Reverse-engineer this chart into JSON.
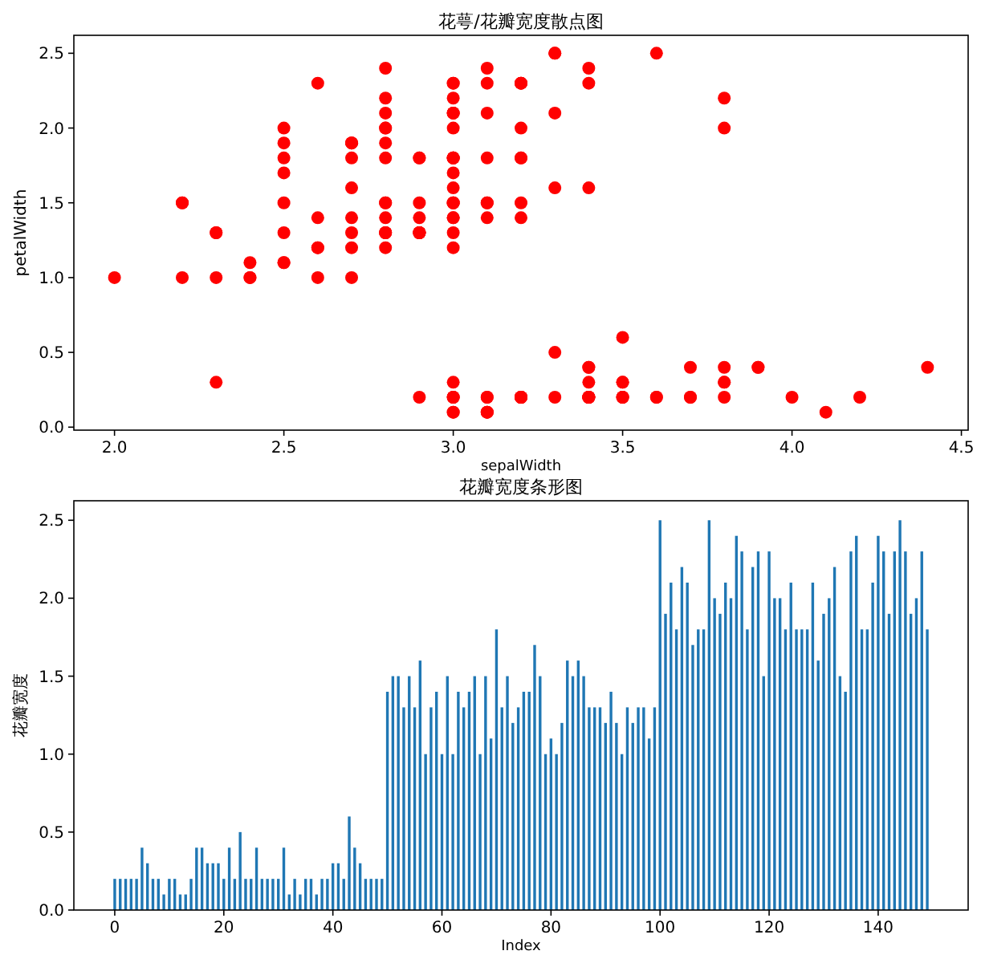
{
  "chart_data": [
    {
      "type": "scatter",
      "title": "花萼/花瓣宽度散点图",
      "xlabel": "sepalWidth",
      "ylabel": "petalWidth",
      "color": "#ff0000",
      "marker": "circle",
      "x": [
        3.5,
        3.0,
        3.2,
        3.1,
        3.6,
        3.9,
        3.4,
        3.4,
        2.9,
        3.1,
        3.7,
        3.4,
        3.0,
        3.0,
        4.0,
        4.4,
        3.9,
        3.5,
        3.8,
        3.8,
        3.4,
        3.7,
        3.6,
        3.3,
        3.4,
        3.0,
        3.4,
        3.5,
        3.4,
        3.2,
        3.1,
        3.4,
        4.1,
        4.2,
        3.1,
        3.2,
        3.5,
        3.1,
        3.0,
        3.4,
        3.5,
        2.3,
        3.2,
        3.5,
        3.8,
        3.0,
        3.8,
        3.2,
        3.7,
        3.3,
        3.2,
        3.2,
        3.1,
        2.3,
        2.8,
        2.8,
        3.3,
        2.4,
        2.9,
        2.7,
        2.0,
        3.0,
        2.2,
        2.9,
        2.9,
        3.1,
        3.0,
        2.7,
        2.2,
        2.5,
        3.2,
        2.8,
        2.5,
        2.8,
        2.9,
        3.0,
        2.8,
        3.0,
        2.9,
        2.6,
        2.4,
        2.4,
        2.7,
        2.7,
        3.0,
        3.4,
        3.1,
        2.3,
        3.0,
        2.5,
        2.6,
        3.0,
        2.6,
        2.3,
        2.7,
        3.0,
        2.9,
        2.9,
        2.5,
        2.8,
        3.3,
        2.7,
        3.0,
        2.9,
        3.0,
        3.0,
        2.5,
        2.9,
        2.5,
        3.6,
        3.2,
        2.7,
        3.0,
        2.5,
        2.8,
        3.2,
        3.0,
        3.8,
        2.6,
        2.2,
        3.2,
        2.8,
        2.8,
        2.7,
        3.3,
        3.2,
        2.8,
        3.0,
        2.8,
        3.0,
        2.8,
        3.8,
        2.8,
        2.8,
        2.6,
        3.0,
        3.4,
        3.1,
        3.0,
        3.1,
        3.1,
        3.1,
        2.7,
        3.2,
        3.3,
        3.0,
        2.5,
        3.0,
        3.4,
        3.0
      ],
      "values": [
        0.2,
        0.2,
        0.2,
        0.2,
        0.2,
        0.4,
        0.3,
        0.2,
        0.2,
        0.1,
        0.2,
        0.2,
        0.1,
        0.1,
        0.2,
        0.4,
        0.4,
        0.3,
        0.3,
        0.3,
        0.2,
        0.4,
        0.2,
        0.5,
        0.2,
        0.2,
        0.4,
        0.2,
        0.2,
        0.2,
        0.2,
        0.4,
        0.1,
        0.2,
        0.1,
        0.2,
        0.2,
        0.1,
        0.2,
        0.2,
        0.3,
        0.3,
        0.2,
        0.6,
        0.4,
        0.3,
        0.2,
        0.2,
        0.2,
        0.2,
        1.4,
        1.5,
        1.5,
        1.3,
        1.5,
        1.3,
        1.6,
        1.0,
        1.3,
        1.4,
        1.0,
        1.5,
        1.0,
        1.4,
        1.3,
        1.4,
        1.5,
        1.0,
        1.5,
        1.1,
        1.8,
        1.3,
        1.5,
        1.2,
        1.3,
        1.4,
        1.4,
        1.7,
        1.5,
        1.0,
        1.1,
        1.0,
        1.2,
        1.6,
        1.5,
        1.6,
        1.5,
        1.3,
        1.3,
        1.3,
        1.2,
        1.4,
        1.2,
        1.0,
        1.3,
        1.2,
        1.3,
        1.3,
        1.1,
        1.3,
        2.5,
        1.9,
        2.1,
        1.8,
        2.2,
        2.1,
        1.7,
        1.8,
        1.8,
        2.5,
        2.0,
        1.9,
        2.1,
        2.0,
        2.4,
        2.3,
        1.8,
        2.2,
        2.3,
        1.5,
        2.3,
        2.0,
        2.0,
        1.8,
        2.1,
        1.8,
        1.8,
        1.8,
        2.1,
        1.6,
        1.9,
        2.0,
        2.2,
        1.5,
        1.4,
        2.3,
        2.4,
        1.8,
        1.8,
        2.1,
        2.4,
        2.3,
        1.9,
        2.3,
        2.5,
        2.3,
        1.9,
        2.0,
        2.3,
        1.8
      ],
      "xlim": [
        1.88,
        4.52
      ],
      "ylim": [
        -0.02,
        2.62
      ],
      "xticks": [
        {
          "value": 2,
          "label": "2.0"
        },
        2.5,
        {
          "value": 3,
          "label": "3.0"
        },
        3.5,
        {
          "value": 4,
          "label": "4.0"
        },
        4.5
      ],
      "yticks": [
        {
          "value": 0,
          "label": "0.0"
        },
        0.5,
        {
          "value": 1,
          "label": "1.0"
        },
        1.5,
        {
          "value": 2,
          "label": "2.0"
        },
        2.5
      ]
    },
    {
      "type": "bar",
      "title": "花瓣宽度条形图",
      "xlabel": "Index",
      "ylabel": "花瓣宽度",
      "color": "#1f77b4",
      "x": [
        0,
        1,
        2,
        3,
        4,
        5,
        6,
        7,
        8,
        9,
        10,
        11,
        12,
        13,
        14,
        15,
        16,
        17,
        18,
        19,
        20,
        21,
        22,
        23,
        24,
        25,
        26,
        27,
        28,
        29,
        30,
        31,
        32,
        33,
        34,
        35,
        36,
        37,
        38,
        39,
        40,
        41,
        42,
        43,
        44,
        45,
        46,
        47,
        48,
        49,
        50,
        51,
        52,
        53,
        54,
        55,
        56,
        57,
        58,
        59,
        60,
        61,
        62,
        63,
        64,
        65,
        66,
        67,
        68,
        69,
        70,
        71,
        72,
        73,
        74,
        75,
        76,
        77,
        78,
        79,
        80,
        81,
        82,
        83,
        84,
        85,
        86,
        87,
        88,
        89,
        90,
        91,
        92,
        93,
        94,
        95,
        96,
        97,
        98,
        99,
        100,
        101,
        102,
        103,
        104,
        105,
        106,
        107,
        108,
        109,
        110,
        111,
        112,
        113,
        114,
        115,
        116,
        117,
        118,
        119,
        120,
        121,
        122,
        123,
        124,
        125,
        126,
        127,
        128,
        129,
        130,
        131,
        132,
        133,
        134,
        135,
        136,
        137,
        138,
        139,
        140,
        141,
        142,
        143,
        144,
        145,
        146,
        147,
        148,
        149
      ],
      "values": [
        0.2,
        0.2,
        0.2,
        0.2,
        0.2,
        0.4,
        0.3,
        0.2,
        0.2,
        0.1,
        0.2,
        0.2,
        0.1,
        0.1,
        0.2,
        0.4,
        0.4,
        0.3,
        0.3,
        0.3,
        0.2,
        0.4,
        0.2,
        0.5,
        0.2,
        0.2,
        0.4,
        0.2,
        0.2,
        0.2,
        0.2,
        0.4,
        0.1,
        0.2,
        0.1,
        0.2,
        0.2,
        0.1,
        0.2,
        0.2,
        0.3,
        0.3,
        0.2,
        0.6,
        0.4,
        0.3,
        0.2,
        0.2,
        0.2,
        0.2,
        1.4,
        1.5,
        1.5,
        1.3,
        1.5,
        1.3,
        1.6,
        1.0,
        1.3,
        1.4,
        1.0,
        1.5,
        1.0,
        1.4,
        1.3,
        1.4,
        1.5,
        1.0,
        1.5,
        1.1,
        1.8,
        1.3,
        1.5,
        1.2,
        1.3,
        1.4,
        1.4,
        1.7,
        1.5,
        1.0,
        1.1,
        1.0,
        1.2,
        1.6,
        1.5,
        1.6,
        1.5,
        1.3,
        1.3,
        1.3,
        1.2,
        1.4,
        1.2,
        1.0,
        1.3,
        1.2,
        1.3,
        1.3,
        1.1,
        1.3,
        2.5,
        1.9,
        2.1,
        1.8,
        2.2,
        2.1,
        1.7,
        1.8,
        1.8,
        2.5,
        2.0,
        1.9,
        2.1,
        2.0,
        2.4,
        2.3,
        1.8,
        2.2,
        2.3,
        1.5,
        2.3,
        2.0,
        2.0,
        1.8,
        2.1,
        1.8,
        1.8,
        1.8,
        2.1,
        1.6,
        1.9,
        2.0,
        2.2,
        1.5,
        1.4,
        2.3,
        2.4,
        1.8,
        1.8,
        2.1,
        2.4,
        2.3,
        1.9,
        2.3,
        2.5,
        2.3,
        1.9,
        2.0,
        2.3,
        1.8
      ],
      "xlim": [
        -7.5,
        156.5
      ],
      "ylim": [
        0,
        2.625
      ],
      "xticks": [
        0,
        20,
        40,
        60,
        80,
        100,
        120,
        140
      ],
      "yticks": [
        {
          "value": 0,
          "label": "0.0"
        },
        0.5,
        {
          "value": 1,
          "label": "1.0"
        },
        1.5,
        {
          "value": 2,
          "label": "2.0"
        },
        2.5
      ]
    }
  ]
}
